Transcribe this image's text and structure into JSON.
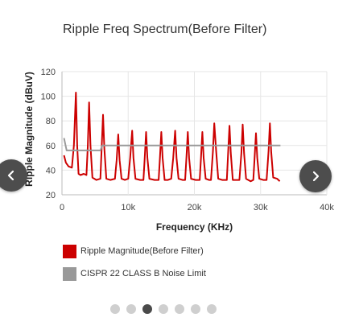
{
  "chart_title": "Ripple Freq Spectrum(Before Filter)",
  "colors": {
    "series_ripple": "#cc0000",
    "series_limit": "#999999",
    "nav_button": "#4d4d4d",
    "dot_inactive": "#cfcfcf",
    "dot_active": "#4a4a4a"
  },
  "icons": {
    "prev": "chevron-left-icon",
    "next": "chevron-right-icon"
  },
  "legend": [
    {
      "label": "Ripple Magnitude(Before Filter)",
      "color": "#cc0000"
    },
    {
      "label": "CISPR 22 CLASS B Noise Limit",
      "color": "#999999"
    }
  ],
  "carousel": {
    "count": 7,
    "active_index": 2
  },
  "chart_data": {
    "type": "line",
    "xlabel": "Frequency (KHz)",
    "ylabel": "Ripple Magnitude (dBuV)",
    "xlim": [
      0,
      40000
    ],
    "ylim": [
      20,
      120
    ],
    "x_ticks": [
      0,
      10000,
      20000,
      30000,
      40000
    ],
    "x_tick_labels": [
      "0",
      "10k",
      "20k",
      "30k",
      "40k"
    ],
    "y_ticks": [
      20,
      40,
      60,
      80,
      100,
      120
    ],
    "y_tick_labels": [
      "20",
      "40",
      "60",
      "80",
      "100",
      "120"
    ],
    "grid": true,
    "legend_position": "bottom",
    "series": [
      {
        "name": "Ripple Magnitude(Before Filter)",
        "color": "#cc0000",
        "x": [
          300,
          600,
          1000,
          1500,
          1800,
          2100,
          2300,
          2500,
          2800,
          3300,
          3700,
          3900,
          4100,
          4300,
          4600,
          5200,
          5800,
          6000,
          6200,
          6400,
          6700,
          7300,
          8000,
          8250,
          8500,
          8700,
          9000,
          9500,
          10000,
          10300,
          10600,
          10800,
          11100,
          11800,
          12300,
          12500,
          12700,
          12900,
          13200,
          14000,
          14600,
          14800,
          15000,
          15200,
          15500,
          16000,
          16500,
          16800,
          17100,
          17300,
          17600,
          18200,
          18600,
          18800,
          19000,
          19200,
          19500,
          20200,
          20800,
          21000,
          21200,
          21400,
          21700,
          22200,
          22500,
          22800,
          23000,
          23300,
          23600,
          24200,
          24900,
          25100,
          25300,
          25500,
          25800,
          26300,
          26800,
          27100,
          27300,
          27500,
          27800,
          28500,
          28900,
          29100,
          29300,
          29500,
          29800,
          30400,
          30900,
          31200,
          31400,
          31600,
          31900,
          32500,
          32900
        ],
        "values": [
          52,
          46,
          43,
          42,
          60,
          103,
          60,
          37,
          36,
          37,
          36,
          60,
          95,
          60,
          34,
          32,
          33,
          58,
          85,
          58,
          33,
          32,
          33,
          48,
          69,
          48,
          33,
          32,
          33,
          50,
          72,
          50,
          33,
          32,
          32,
          50,
          71,
          50,
          33,
          32,
          32,
          50,
          71,
          50,
          32,
          32,
          33,
          50,
          72,
          50,
          33,
          32,
          32,
          50,
          71,
          50,
          33,
          32,
          32,
          50,
          71,
          50,
          33,
          32,
          32,
          55,
          78,
          55,
          33,
          32,
          32,
          54,
          76,
          54,
          32,
          32,
          32,
          54,
          77,
          54,
          33,
          31,
          32,
          50,
          70,
          50,
          33,
          32,
          32,
          55,
          78,
          55,
          34,
          33,
          31
        ]
      },
      {
        "name": "CISPR 22 CLASS B Noise Limit",
        "color": "#999999",
        "x": [
          300,
          700,
          5000,
          5300,
          5800,
          6100,
          33000
        ],
        "values": [
          66,
          56,
          56,
          56,
          56,
          60,
          60
        ]
      }
    ]
  }
}
